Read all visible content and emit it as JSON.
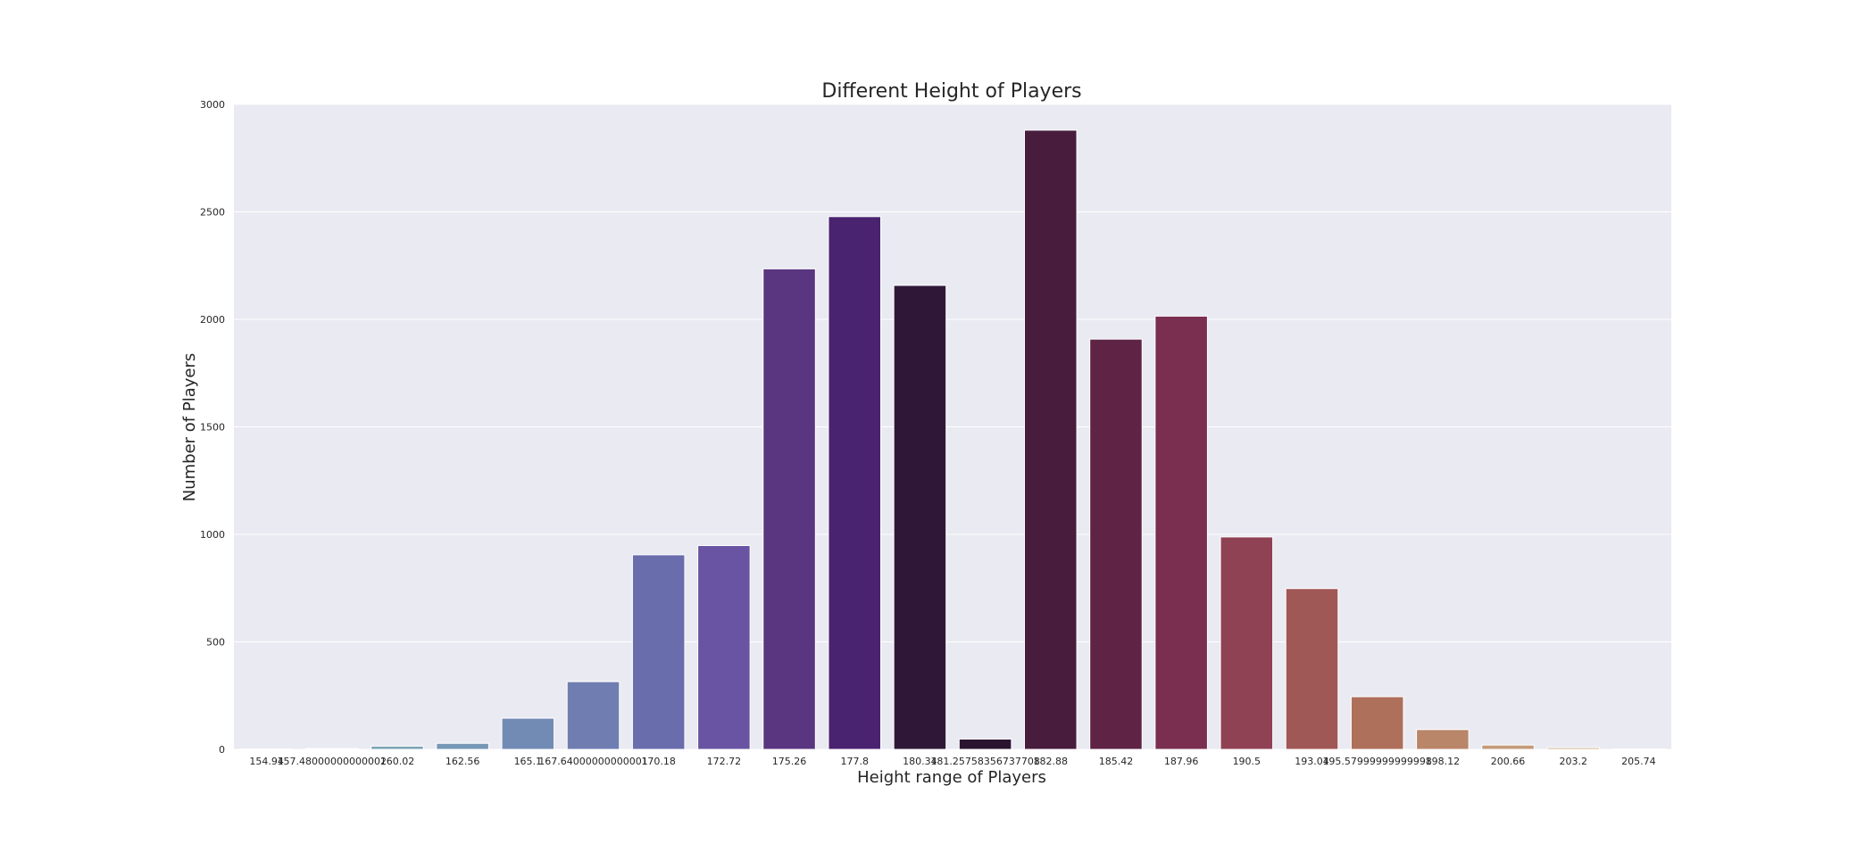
{
  "chart_data": {
    "type": "bar",
    "title": "Different Height of Players",
    "xlabel": "Height range of Players",
    "ylabel": "Number of Players",
    "ylim": [
      0,
      3000
    ],
    "yticks": [
      0,
      500,
      1000,
      1500,
      2000,
      2500,
      3000
    ],
    "grid": true,
    "legend": "none",
    "background_color": "#eaeaf2",
    "categories": [
      "154.94",
      "157.48000000000002",
      "160.02",
      "162.56",
      "165.1",
      "167.64000000000001",
      "170.18",
      "172.72",
      "175.26",
      "177.8",
      "180.34",
      "181.25758356737708",
      "182.88",
      "185.42",
      "187.96",
      "190.5",
      "193.04",
      "195.57999999999998",
      "198.12",
      "200.66",
      "203.2",
      "205.74"
    ],
    "values": [
      2,
      4,
      15,
      28,
      145,
      315,
      905,
      948,
      2235,
      2478,
      2158,
      48,
      2880,
      1908,
      2015,
      988,
      748,
      245,
      92,
      20,
      8,
      2
    ],
    "colors": [
      "#85b7aa",
      "#80aeb0",
      "#7ba3b4",
      "#7697b5",
      "#728bb4",
      "#6f7db1",
      "#6a6dab",
      "#6854a2",
      "#5a3580",
      "#4a2370",
      "#2f1837",
      "#2a1430",
      "#471c3d",
      "#5e2345",
      "#7a2f50",
      "#8f4253",
      "#a05856",
      "#ae6f5b",
      "#b98669",
      "#c39b7a",
      "#cfb28f",
      "#d8c4a6"
    ]
  }
}
